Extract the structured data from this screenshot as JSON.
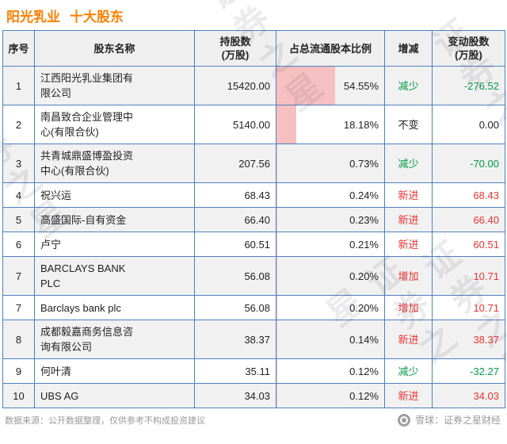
{
  "title": {
    "stock": "阳光乳业",
    "section": "十大股东"
  },
  "watermark": "证券之星",
  "colors": {
    "accent_orange": "#ff7f00",
    "border_blue": "#4e81bd",
    "decrease_green": "#009c48",
    "increase_red": "#ef3333",
    "bar_pink": "#f7c0c0",
    "row_shade": "#f1f1f1"
  },
  "chart_data": {
    "type": "table",
    "title": "阳光乳业 十大股东",
    "columns": [
      {
        "line1": "序号",
        "line2": ""
      },
      {
        "line1": "股东名称",
        "line2": ""
      },
      {
        "line1": "持股数",
        "line2": "(万股)"
      },
      {
        "line1": "占总流通股本比例",
        "line2": ""
      },
      {
        "line1": "增减",
        "line2": ""
      },
      {
        "line1": "变动股数",
        "line2": "(万股)"
      }
    ],
    "rows": [
      {
        "seq": "1",
        "name": "江西阳光乳业集团有限公司",
        "shares": "15420.00",
        "pct": "54.55%",
        "pct_value": 54.55,
        "change": "减少",
        "dir": "down",
        "delta": "-276.52"
      },
      {
        "seq": "2",
        "name": "南昌致合企业管理中心(有限合伙)",
        "shares": "5140.00",
        "pct": "18.18%",
        "pct_value": 18.18,
        "change": "不变",
        "dir": "flat",
        "delta": "0.00"
      },
      {
        "seq": "3",
        "name": "共青城鼎盛博盈投资中心(有限合伙)",
        "shares": "207.56",
        "pct": "0.73%",
        "pct_value": 0.73,
        "change": "减少",
        "dir": "down",
        "delta": "-70.00"
      },
      {
        "seq": "4",
        "name": "祝兴运",
        "shares": "68.43",
        "pct": "0.24%",
        "pct_value": 0.24,
        "change": "新进",
        "dir": "new",
        "delta": "68.43"
      },
      {
        "seq": "5",
        "name": "高盛国际-自有资金",
        "shares": "66.40",
        "pct": "0.23%",
        "pct_value": 0.23,
        "change": "新进",
        "dir": "new",
        "delta": "66.40"
      },
      {
        "seq": "6",
        "name": "卢宁",
        "shares": "60.51",
        "pct": "0.21%",
        "pct_value": 0.21,
        "change": "新进",
        "dir": "new",
        "delta": "60.51"
      },
      {
        "seq": "7",
        "name": "BARCLAYS BANK PLC",
        "shares": "56.08",
        "pct": "0.20%",
        "pct_value": 0.2,
        "change": "增加",
        "dir": "up",
        "delta": "10.71"
      },
      {
        "seq": "7",
        "name": "Barclays bank plc",
        "shares": "56.08",
        "pct": "0.20%",
        "pct_value": 0.2,
        "change": "增加",
        "dir": "up",
        "delta": "10.71"
      },
      {
        "seq": "8",
        "name": "成都毅嘉商务信息咨询有限公司",
        "shares": "38.37",
        "pct": "0.14%",
        "pct_value": 0.14,
        "change": "新进",
        "dir": "new",
        "delta": "38.37"
      },
      {
        "seq": "9",
        "name": "何叶清",
        "shares": "35.11",
        "pct": "0.12%",
        "pct_value": 0.12,
        "change": "减少",
        "dir": "down",
        "delta": "-32.27"
      },
      {
        "seq": "10",
        "name": "UBS AG",
        "shares": "34.03",
        "pct": "0.12%",
        "pct_value": 0.12,
        "change": "新进",
        "dir": "new",
        "delta": "34.03"
      }
    ]
  },
  "footer": {
    "source": "数据来源：公开数据整理，仅供参考不构成投资建议",
    "brand": "雪球：证券之星财经"
  }
}
